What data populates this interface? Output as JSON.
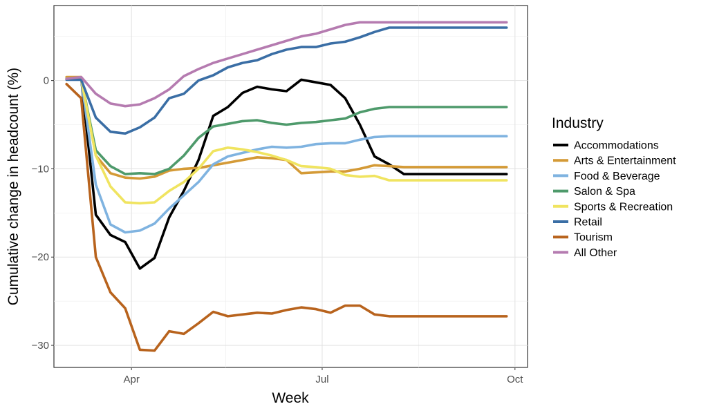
{
  "chart_data": {
    "type": "line",
    "title": "",
    "xlabel": "Week",
    "ylabel": "Cumulative change in headcount (%)",
    "x_ticks": [
      "Apr",
      "Jul",
      "Oct"
    ],
    "y_ticks": [
      -30,
      -20,
      -10,
      0
    ],
    "ylim": [
      -32.5,
      8.5
    ],
    "x": [
      "2020-03-01",
      "2020-03-08",
      "2020-03-15",
      "2020-03-22",
      "2020-03-29",
      "2020-04-05",
      "2020-04-12",
      "2020-04-19",
      "2020-04-26",
      "2020-05-03",
      "2020-05-10",
      "2020-05-17",
      "2020-05-24",
      "2020-05-31",
      "2020-06-07",
      "2020-06-14",
      "2020-06-21",
      "2020-06-28",
      "2020-07-05",
      "2020-07-12",
      "2020-07-19",
      "2020-07-26",
      "2020-08-02",
      "2020-08-09",
      "2020-08-16",
      "2020-08-23",
      "2020-08-30",
      "2020-09-06",
      "2020-09-13",
      "2020-09-20",
      "2020-09-27"
    ],
    "grid": true,
    "legend_title": "Industry",
    "legend_position": "right",
    "series": [
      {
        "name": "Accommodations",
        "color": "#000000",
        "values": [
          0.2,
          0.3,
          -15.2,
          -17.5,
          -18.3,
          -21.3,
          -20.1,
          -15.5,
          -12.5,
          -9.0,
          -4.0,
          -3.0,
          -1.4,
          -0.7,
          -1.0,
          -1.2,
          0.1,
          -0.2,
          -0.5,
          -2.0,
          -5.0,
          -8.6,
          -9.5,
          -10.6,
          -10.6,
          -10.6,
          -10.6,
          -10.6,
          -10.6,
          -10.6,
          -10.6
        ]
      },
      {
        "name": "Arts & Entertainment",
        "color": "#D49A36",
        "values": [
          0.4,
          0.4,
          -8.5,
          -10.5,
          -11.0,
          -11.1,
          -10.9,
          -10.2,
          -10.0,
          -9.9,
          -9.6,
          -9.3,
          -9.0,
          -8.7,
          -8.8,
          -9.0,
          -10.5,
          -10.4,
          -10.3,
          -10.3,
          -10.0,
          -9.6,
          -9.7,
          -9.8,
          -9.8,
          -9.8,
          -9.8,
          -9.8,
          -9.8,
          -9.8,
          -9.8
        ]
      },
      {
        "name": "Food & Beverage",
        "color": "#7FB3E0",
        "values": [
          0.2,
          0.2,
          -11.8,
          -16.3,
          -17.2,
          -17.0,
          -16.2,
          -14.5,
          -13.0,
          -11.5,
          -9.5,
          -8.6,
          -8.2,
          -7.8,
          -7.5,
          -7.6,
          -7.5,
          -7.2,
          -7.1,
          -7.1,
          -6.7,
          -6.4,
          -6.3,
          -6.3,
          -6.3,
          -6.3,
          -6.3,
          -6.3,
          -6.3,
          -6.3,
          -6.3
        ]
      },
      {
        "name": "Salon & Spa",
        "color": "#4E9A6B",
        "values": [
          0.2,
          0.2,
          -7.9,
          -9.7,
          -10.6,
          -10.5,
          -10.6,
          -10.0,
          -8.5,
          -6.5,
          -5.2,
          -4.9,
          -4.6,
          -4.5,
          -4.8,
          -5.0,
          -4.8,
          -4.7,
          -4.5,
          -4.3,
          -3.6,
          -3.2,
          -3.0,
          -3.0,
          -3.0,
          -3.0,
          -3.0,
          -3.0,
          -3.0,
          -3.0,
          -3.0
        ]
      },
      {
        "name": "Sports & Recreation",
        "color": "#F0E460",
        "values": [
          0.2,
          0.2,
          -8.5,
          -12.0,
          -13.8,
          -13.9,
          -13.8,
          -12.5,
          -11.5,
          -10.0,
          -8.0,
          -7.6,
          -7.8,
          -8.1,
          -8.5,
          -9.0,
          -9.7,
          -9.8,
          -10.0,
          -10.7,
          -10.9,
          -10.8,
          -11.3,
          -11.3,
          -11.3,
          -11.3,
          -11.3,
          -11.3,
          -11.3,
          -11.3,
          -11.3
        ]
      },
      {
        "name": "Retail",
        "color": "#3A6EA5",
        "values": [
          0.1,
          0.1,
          -4.2,
          -5.8,
          -6.0,
          -5.3,
          -4.2,
          -2.0,
          -1.5,
          0.0,
          0.6,
          1.5,
          2.0,
          2.3,
          3.0,
          3.5,
          3.8,
          3.8,
          4.2,
          4.4,
          4.9,
          5.5,
          6.0,
          6.0,
          6.0,
          6.0,
          6.0,
          6.0,
          6.0,
          6.0,
          6.0
        ]
      },
      {
        "name": "Tourism",
        "color": "#B8631D",
        "values": [
          -0.4,
          -2.0,
          -20.0,
          -24.0,
          -25.8,
          -30.5,
          -30.6,
          -28.4,
          -28.7,
          -27.5,
          -26.2,
          -26.7,
          -26.5,
          -26.3,
          -26.4,
          -26.0,
          -25.7,
          -25.9,
          -26.3,
          -25.5,
          -25.5,
          -26.5,
          -26.7,
          -26.7,
          -26.7,
          -26.7,
          -26.7,
          -26.7,
          -26.7,
          -26.7,
          -26.7
        ]
      },
      {
        "name": "All Other",
        "color": "#B57BB0",
        "values": [
          0.2,
          0.4,
          -1.5,
          -2.6,
          -2.9,
          -2.7,
          -2.0,
          -1.0,
          0.5,
          1.3,
          2.0,
          2.5,
          3.0,
          3.5,
          4.0,
          4.5,
          5.0,
          5.3,
          5.8,
          6.3,
          6.6,
          6.6,
          6.6,
          6.6,
          6.6,
          6.6,
          6.6,
          6.6,
          6.6,
          6.6,
          6.6
        ]
      }
    ]
  }
}
